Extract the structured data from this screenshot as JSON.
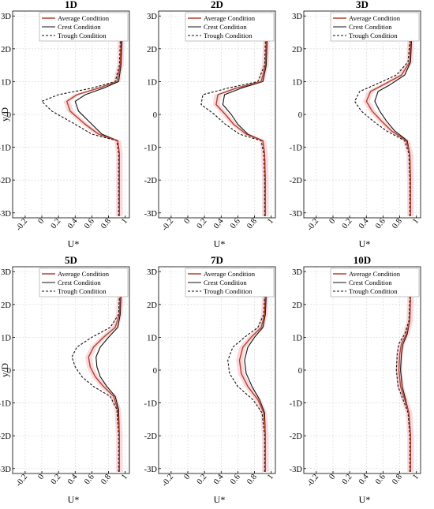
{
  "figure": {
    "colors": {
      "average": "#b5402a",
      "crest": "#111111",
      "trough": "#111111",
      "band": "#f6c9cf",
      "grid": "#d4d4d4",
      "axis": "#000000"
    },
    "legend": [
      "Average Condition",
      "Crest Condition",
      "Trough Condition"
    ]
  },
  "chart_data": [
    {
      "type": "line",
      "title": "1D",
      "xlabel": "U*",
      "ylabel": "y/D",
      "xlim": [
        -0.35,
        1.05
      ],
      "ylim": [
        -3.15,
        3.15
      ],
      "xticks": [
        "-0.2",
        "0",
        "0.2",
        "0.4",
        "0.6",
        "0.8",
        "1"
      ],
      "yticks": [
        "-3D",
        "-2D",
        "-1D",
        "0",
        "1D",
        "2D",
        "3D"
      ],
      "grid": true,
      "legend_position": "top-right",
      "band": "average ± spread",
      "series": [
        {
          "name": "Average Condition",
          "style": "solid",
          "y": [
            -3.1,
            -2.0,
            -1.2,
            -0.8,
            -0.6,
            -0.3,
            0.1,
            0.4,
            0.6,
            0.8,
            1.0,
            1.5,
            2.2,
            3.1
          ],
          "x": [
            0.93,
            0.93,
            0.93,
            0.91,
            0.68,
            0.52,
            0.34,
            0.3,
            0.42,
            0.68,
            0.9,
            0.94,
            0.95,
            0.95
          ]
        },
        {
          "name": "Crest Condition",
          "style": "solid",
          "y": [
            -3.1,
            -2.0,
            -1.2,
            -0.8,
            -0.6,
            -0.3,
            0.1,
            0.4,
            0.6,
            0.8,
            1.0,
            1.5,
            2.2,
            3.1
          ],
          "x": [
            0.93,
            0.93,
            0.93,
            0.91,
            0.72,
            0.6,
            0.44,
            0.4,
            0.52,
            0.74,
            0.92,
            0.95,
            0.96,
            0.96
          ]
        },
        {
          "name": "Trough Condition",
          "style": "dashed",
          "y": [
            -3.1,
            -2.0,
            -1.2,
            -0.8,
            -0.6,
            -0.3,
            0.1,
            0.4,
            0.6,
            0.8,
            1.0,
            1.5,
            2.2,
            3.1
          ],
          "x": [
            0.92,
            0.92,
            0.92,
            0.9,
            0.6,
            0.4,
            0.12,
            0.0,
            0.2,
            0.6,
            0.88,
            0.93,
            0.94,
            0.94
          ]
        }
      ]
    },
    {
      "type": "line",
      "title": "2D",
      "xlabel": "U*",
      "ylabel": "",
      "xlim": [
        -0.35,
        1.05
      ],
      "ylim": [
        -3.15,
        3.15
      ],
      "xticks": [
        "-0.2",
        "0",
        "0.2",
        "0.4",
        "0.6",
        "0.8",
        "1"
      ],
      "yticks": [
        "-3D",
        "-2D",
        "-1D",
        "0",
        "1D",
        "2D",
        "3D"
      ],
      "grid": true,
      "legend_position": "top-right",
      "band": "average ± spread",
      "series": [
        {
          "name": "Average Condition",
          "style": "solid",
          "y": [
            -3.1,
            -2.0,
            -1.2,
            -0.8,
            -0.6,
            -0.3,
            0.0,
            0.3,
            0.6,
            0.8,
            1.0,
            1.5,
            2.2,
            3.1
          ],
          "x": [
            0.93,
            0.93,
            0.92,
            0.9,
            0.7,
            0.55,
            0.45,
            0.34,
            0.36,
            0.58,
            0.88,
            0.93,
            0.94,
            0.94
          ]
        },
        {
          "name": "Crest Condition",
          "style": "solid",
          "y": [
            -3.1,
            -2.0,
            -1.2,
            -0.8,
            -0.6,
            -0.3,
            0.0,
            0.3,
            0.6,
            0.8,
            1.0,
            1.5,
            2.2,
            3.1
          ],
          "x": [
            0.93,
            0.93,
            0.92,
            0.9,
            0.72,
            0.6,
            0.52,
            0.42,
            0.44,
            0.64,
            0.9,
            0.94,
            0.95,
            0.95
          ]
        },
        {
          "name": "Trough Condition",
          "style": "dashed",
          "y": [
            -3.1,
            -2.0,
            -1.2,
            -0.8,
            -0.6,
            -0.3,
            0.0,
            0.3,
            0.6,
            0.8,
            1.0,
            1.5,
            2.2,
            3.1
          ],
          "x": [
            0.92,
            0.92,
            0.91,
            0.88,
            0.62,
            0.45,
            0.32,
            0.16,
            0.18,
            0.48,
            0.84,
            0.92,
            0.93,
            0.93
          ]
        }
      ]
    },
    {
      "type": "line",
      "title": "3D",
      "xlabel": "U*",
      "ylabel": "",
      "xlim": [
        -0.35,
        1.05
      ],
      "ylim": [
        -3.15,
        3.15
      ],
      "xticks": [
        "-0.2",
        "0",
        "0.2",
        "0.4",
        "0.6",
        "0.8",
        "1"
      ],
      "yticks": [
        "-3D",
        "-2D",
        "-1D",
        "0",
        "1D",
        "2D",
        "3D"
      ],
      "grid": true,
      "legend_position": "top-right",
      "band": "average ± spread",
      "series": [
        {
          "name": "Average Condition",
          "style": "solid",
          "y": [
            -3.1,
            -2.0,
            -1.2,
            -0.8,
            -0.5,
            -0.2,
            0.1,
            0.4,
            0.7,
            0.9,
            1.2,
            1.6,
            2.2,
            3.1
          ],
          "x": [
            0.93,
            0.93,
            0.92,
            0.88,
            0.7,
            0.58,
            0.47,
            0.4,
            0.45,
            0.6,
            0.82,
            0.92,
            0.93,
            0.94
          ]
        },
        {
          "name": "Crest Condition",
          "style": "solid",
          "y": [
            -3.1,
            -2.0,
            -1.2,
            -0.8,
            -0.5,
            -0.2,
            0.1,
            0.4,
            0.7,
            0.9,
            1.2,
            1.6,
            2.2,
            3.1
          ],
          "x": [
            0.93,
            0.93,
            0.92,
            0.89,
            0.74,
            0.64,
            0.56,
            0.5,
            0.54,
            0.68,
            0.86,
            0.93,
            0.94,
            0.95
          ]
        },
        {
          "name": "Trough Condition",
          "style": "dashed",
          "y": [
            -3.1,
            -2.0,
            -1.2,
            -0.8,
            -0.5,
            -0.2,
            0.1,
            0.4,
            0.7,
            0.9,
            1.2,
            1.6,
            2.2,
            3.1
          ],
          "x": [
            0.92,
            0.92,
            0.91,
            0.86,
            0.64,
            0.48,
            0.34,
            0.26,
            0.32,
            0.5,
            0.76,
            0.9,
            0.92,
            0.93
          ]
        }
      ]
    },
    {
      "type": "line",
      "title": "5D",
      "xlabel": "U*",
      "ylabel": "y/D",
      "xlim": [
        -0.35,
        1.05
      ],
      "ylim": [
        -3.15,
        3.15
      ],
      "xticks": [
        "-0.2",
        "0",
        "0.2",
        "0.4",
        "0.6",
        "0.8",
        "1"
      ],
      "yticks": [
        "-3D",
        "-2D",
        "-1D",
        "0",
        "1D",
        "2D",
        "3D"
      ],
      "grid": true,
      "legend_position": "top-right",
      "band": "average ± spread",
      "series": [
        {
          "name": "Average Condition",
          "style": "solid",
          "y": [
            -3.1,
            -2.0,
            -1.2,
            -0.8,
            -0.5,
            -0.2,
            0.1,
            0.4,
            0.7,
            1.0,
            1.3,
            1.7,
            2.3,
            3.1
          ],
          "x": [
            0.93,
            0.93,
            0.91,
            0.86,
            0.74,
            0.64,
            0.58,
            0.56,
            0.62,
            0.74,
            0.88,
            0.93,
            0.94,
            0.94
          ]
        },
        {
          "name": "Crest Condition",
          "style": "solid",
          "y": [
            -3.1,
            -2.0,
            -1.2,
            -0.8,
            -0.5,
            -0.2,
            0.1,
            0.4,
            0.7,
            1.0,
            1.3,
            1.7,
            2.3,
            3.1
          ],
          "x": [
            0.93,
            0.93,
            0.92,
            0.88,
            0.78,
            0.7,
            0.66,
            0.65,
            0.7,
            0.8,
            0.91,
            0.94,
            0.95,
            0.95
          ]
        },
        {
          "name": "Trough Condition",
          "style": "dashed",
          "y": [
            -3.1,
            -2.0,
            -1.2,
            -0.8,
            -0.5,
            -0.2,
            0.1,
            0.4,
            0.7,
            1.0,
            1.3,
            1.7,
            2.3,
            3.1
          ],
          "x": [
            0.92,
            0.92,
            0.9,
            0.82,
            0.62,
            0.48,
            0.4,
            0.36,
            0.42,
            0.6,
            0.82,
            0.92,
            0.93,
            0.93
          ]
        }
      ]
    },
    {
      "type": "line",
      "title": "7D",
      "xlabel": "U*",
      "ylabel": "",
      "xlim": [
        -0.35,
        1.05
      ],
      "ylim": [
        -3.15,
        3.15
      ],
      "xticks": [
        "-0.2",
        "0",
        "0.2",
        "0.4",
        "0.6",
        "0.8",
        "1"
      ],
      "yticks": [
        "-3D",
        "-2D",
        "-1D",
        "0",
        "1D",
        "2D",
        "3D"
      ],
      "grid": true,
      "legend_position": "top-right",
      "band": "average ± spread",
      "series": [
        {
          "name": "Average Condition",
          "style": "solid",
          "y": [
            -3.1,
            -2.0,
            -1.3,
            -0.9,
            -0.5,
            -0.1,
            0.3,
            0.7,
            1.0,
            1.3,
            1.7,
            2.3,
            3.1
          ],
          "x": [
            0.93,
            0.93,
            0.91,
            0.84,
            0.72,
            0.64,
            0.62,
            0.66,
            0.76,
            0.88,
            0.92,
            0.93,
            0.93
          ]
        },
        {
          "name": "Crest Condition",
          "style": "solid",
          "y": [
            -3.1,
            -2.0,
            -1.3,
            -0.9,
            -0.5,
            -0.1,
            0.3,
            0.7,
            1.0,
            1.3,
            1.7,
            2.3,
            3.1
          ],
          "x": [
            0.93,
            0.93,
            0.92,
            0.86,
            0.77,
            0.7,
            0.68,
            0.72,
            0.8,
            0.9,
            0.93,
            0.94,
            0.94
          ]
        },
        {
          "name": "Trough Condition",
          "style": "dashed",
          "y": [
            -3.1,
            -2.0,
            -1.3,
            -0.9,
            -0.5,
            -0.1,
            0.3,
            0.7,
            1.0,
            1.3,
            1.7,
            2.3,
            3.1
          ],
          "x": [
            0.92,
            0.92,
            0.89,
            0.78,
            0.6,
            0.5,
            0.48,
            0.54,
            0.68,
            0.84,
            0.91,
            0.92,
            0.92
          ]
        }
      ]
    },
    {
      "type": "line",
      "title": "10D",
      "xlabel": "U*",
      "ylabel": "",
      "xlim": [
        -0.35,
        1.05
      ],
      "ylim": [
        -3.15,
        3.15
      ],
      "xticks": [
        "-0.2",
        "0",
        "0.2",
        "0.4",
        "0.6",
        "0.8",
        "1"
      ],
      "yticks": [
        "-3D",
        "-2D",
        "-1D",
        "0",
        "1D",
        "2D",
        "3D"
      ],
      "grid": true,
      "legend_position": "top-right",
      "band": "average ± spread",
      "series": [
        {
          "name": "Average Condition",
          "style": "solid",
          "y": [
            -3.1,
            -2.0,
            -1.3,
            -0.9,
            -0.5,
            0.0,
            0.5,
            0.8,
            1.1,
            1.5,
            2.2,
            3.1
          ],
          "x": [
            0.93,
            0.93,
            0.91,
            0.86,
            0.81,
            0.79,
            0.8,
            0.82,
            0.88,
            0.92,
            0.93,
            0.93
          ]
        },
        {
          "name": "Crest Condition",
          "style": "solid",
          "y": [
            -3.1,
            -2.0,
            -1.3,
            -0.9,
            -0.5,
            0.0,
            0.5,
            0.8,
            1.1,
            1.5,
            2.2,
            3.1
          ],
          "x": [
            0.93,
            0.93,
            0.91,
            0.87,
            0.83,
            0.81,
            0.82,
            0.84,
            0.89,
            0.92,
            0.93,
            0.93
          ]
        },
        {
          "name": "Trough Condition",
          "style": "dashed",
          "y": [
            -3.1,
            -2.0,
            -1.3,
            -0.9,
            -0.5,
            0.0,
            0.5,
            0.8,
            1.1,
            1.5,
            2.2,
            3.1
          ],
          "x": [
            0.92,
            0.92,
            0.9,
            0.84,
            0.78,
            0.76,
            0.77,
            0.79,
            0.86,
            0.91,
            0.92,
            0.92
          ]
        }
      ]
    }
  ]
}
